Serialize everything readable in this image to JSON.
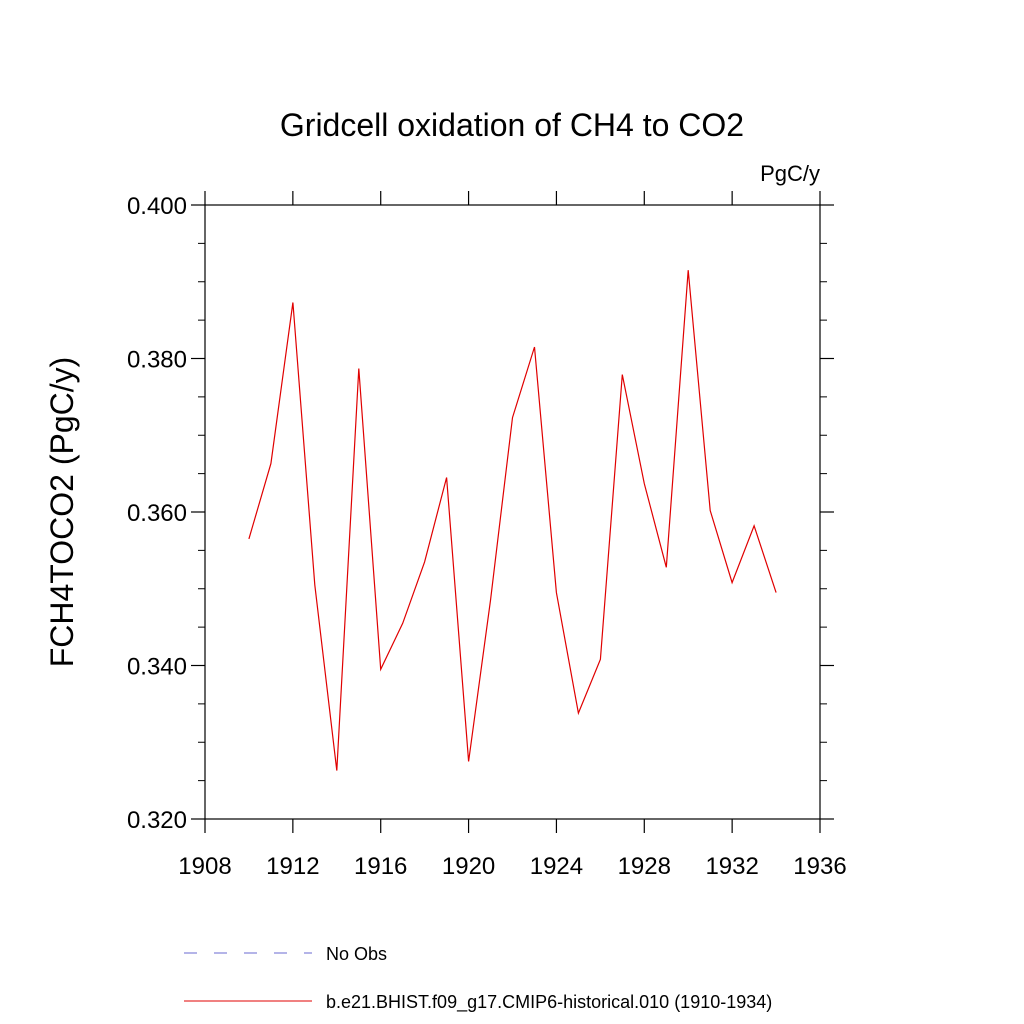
{
  "chart_data": {
    "type": "line",
    "title": "Gridcell oxidation of CH4 to CO2",
    "units": "PgC/y",
    "ylabel": "FCH4TOCO2  (PgC/y)",
    "xlabel": "",
    "xlim": [
      1908,
      1936
    ],
    "ylim": [
      0.32,
      0.4
    ],
    "x_ticks": [
      1908,
      1912,
      1916,
      1920,
      1924,
      1928,
      1932,
      1936
    ],
    "x_tick_labels": [
      "1908",
      "1912",
      "1916",
      "1920",
      "1924",
      "1928",
      "1932",
      "1936"
    ],
    "y_ticks": [
      0.32,
      0.34,
      0.36,
      0.38,
      0.4
    ],
    "y_tick_labels": [
      "0.320",
      "0.340",
      "0.360",
      "0.380",
      "0.400"
    ],
    "grid": false,
    "legend_position": "bottom",
    "series": [
      {
        "name": "b.e21.BHIST.f09_g17.CMIP6-historical.010 (1910-1934)",
        "color": "#e00000",
        "style": "solid",
        "x": [
          1910,
          1911,
          1912,
          1913,
          1914,
          1915,
          1916,
          1917,
          1918,
          1919,
          1920,
          1921,
          1922,
          1923,
          1924,
          1925,
          1926,
          1927,
          1928,
          1929,
          1930,
          1931,
          1932,
          1933,
          1934
        ],
        "y": [
          0.3565,
          0.3663,
          0.3873,
          0.3505,
          0.3263,
          0.3787,
          0.3395,
          0.3455,
          0.3535,
          0.3645,
          0.3275,
          0.3485,
          0.3723,
          0.3815,
          0.3495,
          0.3338,
          0.3408,
          0.3779,
          0.3637,
          0.3528,
          0.3915,
          0.3602,
          0.3508,
          0.3582,
          0.3495
        ]
      }
    ],
    "legend": [
      {
        "label": "No Obs",
        "color": "#6a6ad0",
        "style": "dashed"
      },
      {
        "label": "b.e21.BHIST.f09_g17.CMIP6-historical.010 (1910-1934)",
        "color": "#e00000",
        "style": "solid"
      }
    ]
  }
}
